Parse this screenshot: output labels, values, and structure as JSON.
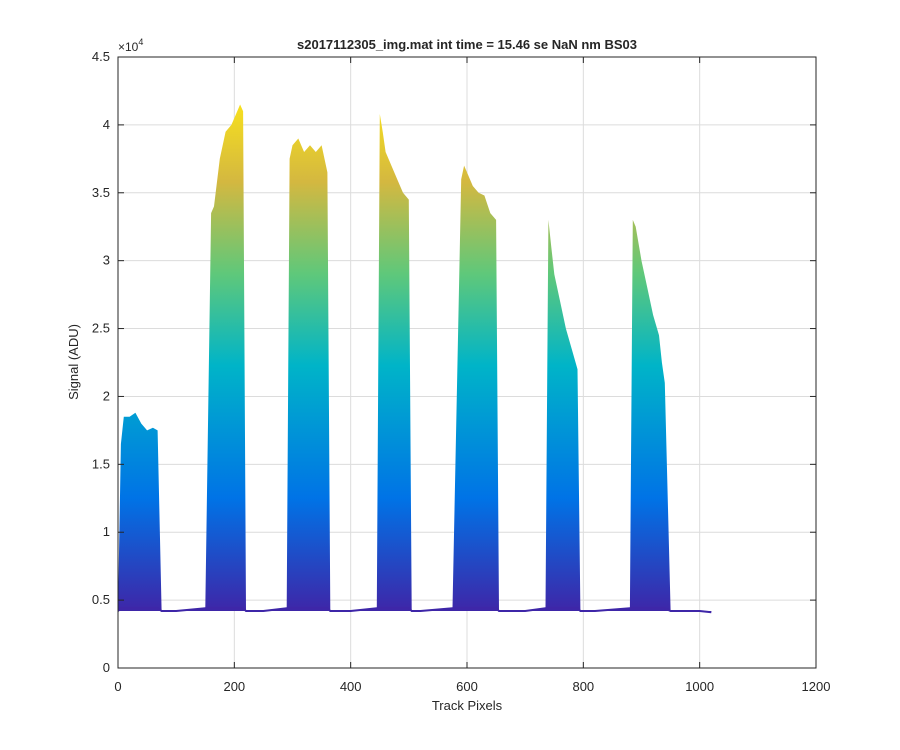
{
  "chart_data": {
    "type": "area",
    "title": "s2017112305_img.mat int time = 15.46 se  NaN nm BS03",
    "xlabel": "Track Pixels",
    "ylabel": "Signal (ADU)",
    "xlim": [
      0,
      1200
    ],
    "ylim": [
      0,
      45000
    ],
    "xticks": [
      0,
      200,
      400,
      600,
      800,
      1000,
      1200
    ],
    "yticks": [
      0,
      0.5,
      1,
      1.5,
      2,
      2.5,
      3,
      3.5,
      4,
      4.5
    ],
    "ytick_labels": [
      "0",
      "0.5",
      "1",
      "1.5",
      "2",
      "2.5",
      "3",
      "3.5",
      "4",
      "4.5"
    ],
    "y_exponent_base": "×10",
    "y_exponent_power": "4",
    "grid": true,
    "colormap": [
      "#3e26a8",
      "#0073e6",
      "#00b4c8",
      "#5fc87a",
      "#d4b840",
      "#f9e21c"
    ],
    "baseline": 4200,
    "series": [
      {
        "x": [
          0,
          5,
          10,
          20,
          30,
          40,
          50,
          60,
          68,
          75,
          100,
          150,
          160,
          165,
          175,
          185,
          195,
          200,
          210,
          215,
          220,
          230,
          250,
          290,
          295,
          300,
          310,
          320,
          330,
          340,
          350,
          360,
          365,
          400,
          445,
          450,
          455,
          460,
          470,
          480,
          490,
          500,
          505,
          520,
          575,
          590,
          595,
          600,
          610,
          620,
          630,
          640,
          650,
          655,
          700,
          735,
          740,
          745,
          750,
          760,
          770,
          780,
          790,
          795,
          820,
          880,
          885,
          890,
          900,
          910,
          920,
          930,
          935,
          940,
          950,
          1000,
          1020
        ],
        "y": [
          4200,
          16500,
          18500,
          18500,
          18800,
          18000,
          17500,
          17700,
          17500,
          4200,
          4200,
          4400,
          33500,
          34000,
          37500,
          39500,
          40000,
          40500,
          41500,
          41000,
          4200,
          4200,
          4200,
          4400,
          37500,
          38500,
          39000,
          38000,
          38500,
          38000,
          38500,
          36500,
          4200,
          4200,
          4400,
          40800,
          39500,
          38000,
          37000,
          36000,
          35000,
          34500,
          4200,
          4200,
          4400,
          36000,
          37000,
          36500,
          35500,
          35000,
          34800,
          33500,
          33000,
          4200,
          4200,
          4400,
          33000,
          31000,
          29000,
          27000,
          25000,
          23500,
          22000,
          4200,
          4200,
          4400,
          33000,
          32500,
          30000,
          28000,
          26000,
          24500,
          22500,
          21000,
          4200,
          4200,
          4100
        ]
      }
    ]
  }
}
